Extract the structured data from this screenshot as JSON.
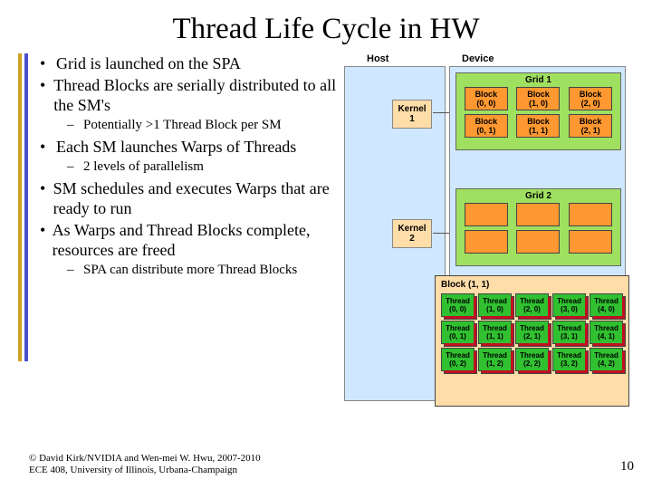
{
  "title": "Thread Life Cycle in HW",
  "bullets": [
    {
      "lvl": 1,
      "text": "Grid is launched on the SPA"
    },
    {
      "lvl": 1,
      "text": "Thread Blocks are serially distributed to all the SM's"
    },
    {
      "lvl": 2,
      "text": "Potentially >1 Thread Block per SM"
    },
    {
      "lvl": 1,
      "text": "Each SM launches Warps of Threads"
    },
    {
      "lvl": 2,
      "text": "2 levels of parallelism"
    },
    {
      "lvl": 1,
      "text": "SM schedules and executes Warps that are ready to run"
    },
    {
      "lvl": 1,
      "text": "As Warps and Thread Blocks complete, resources are freed"
    },
    {
      "lvl": 2,
      "text": "SPA can distribute more Thread Blocks"
    }
  ],
  "footer1": "© David Kirk/NVIDIA and Wen-mei W. Hwu, 2007-2010",
  "footer2": "ECE 408, University of Illinois, Urbana-Champaign",
  "page": "10",
  "hostLabel": "Host",
  "deviceLabel": "Device",
  "kernel1a": "Kernel",
  "kernel1b": "1",
  "kernel2a": "Kernel",
  "kernel2b": "2",
  "grid1": "Grid 1",
  "grid2": "Grid 2",
  "g1blocks": [
    [
      "(0, 0)",
      "(1, 0)",
      "(2, 0)"
    ],
    [
      "(0, 1)",
      "(1, 1)",
      "(2, 1)"
    ]
  ],
  "detailLabel": "Block (1, 1)",
  "threads": [
    [
      "(0, 0)",
      "(1, 0)",
      "(2, 0)",
      "(3, 0)",
      "(4, 0)"
    ],
    [
      "(0, 1)",
      "(1, 1)",
      "(2, 1)",
      "(3, 1)",
      "(4, 1)"
    ],
    [
      "(0, 2)",
      "(1, 2)",
      "(2, 2)",
      "(3, 2)",
      "(4, 2)"
    ]
  ],
  "blockWord": "Block",
  "threadWord": "Thread",
  "colors": {
    "hostBg": "#d0e8ff",
    "gridBg": "#a0e060",
    "blockBg": "#ff9830",
    "kernelBg": "#ffdda8",
    "detailBg": "#ffdda8",
    "thFront": "#30c030",
    "thMid": "#c01020",
    "thBack": "#ffe060"
  }
}
